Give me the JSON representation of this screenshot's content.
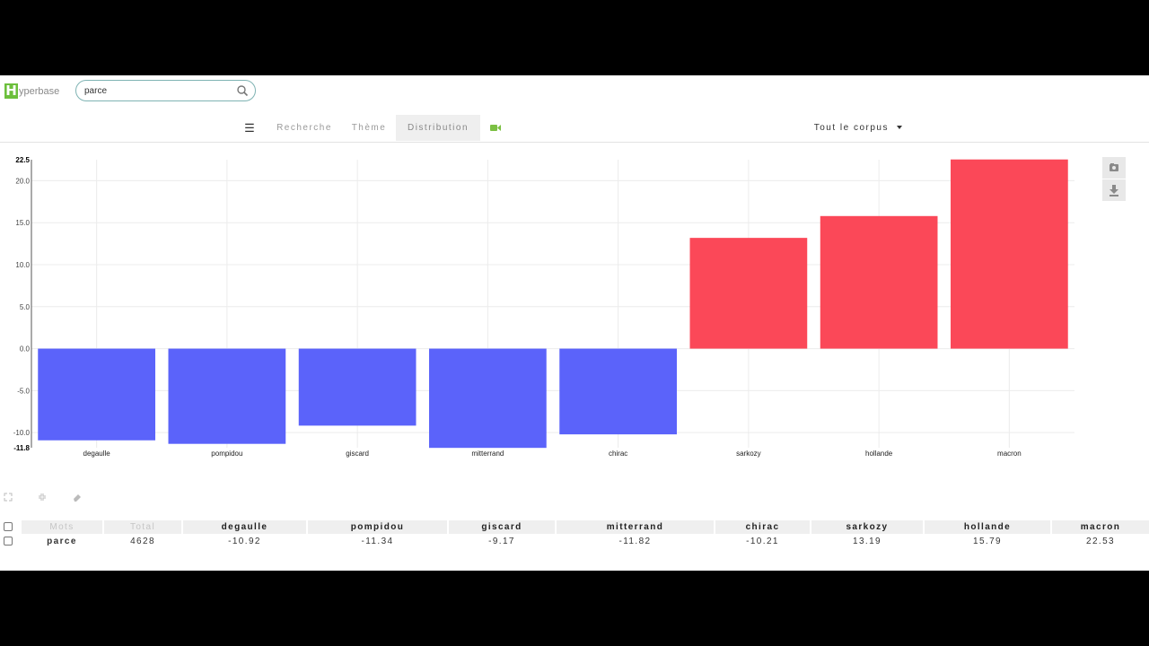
{
  "app": {
    "logo_letter": "H",
    "logo_rest": "yperbase"
  },
  "search": {
    "value": "parce",
    "icon": "search-icon"
  },
  "nav": {
    "menu_icon": "☰",
    "tabs": [
      "Recherche",
      "Thème",
      "Distribution"
    ],
    "active_tab": "Distribution",
    "camera_icon": "video-camera-icon",
    "corpus_label": "Tout le corpus"
  },
  "colors": {
    "negative": "#5b63fa",
    "positive": "#fb4858",
    "accent": "#6cbf3c"
  },
  "chart_data": {
    "type": "bar",
    "categories": [
      "degaulle",
      "pompidou",
      "giscard",
      "mitterrand",
      "chirac",
      "sarkozy",
      "hollande",
      "macron"
    ],
    "values": [
      -10.92,
      -11.34,
      -9.17,
      -11.82,
      -10.21,
      13.19,
      15.79,
      22.53
    ],
    "ylim": [
      -11.8,
      22.5
    ],
    "yticks": [
      "22.5",
      "20.0",
      "15.0",
      "10.0",
      "5.0",
      "0.0",
      "-5.0",
      "-10.0",
      "-11.8"
    ],
    "grid": true
  },
  "table": {
    "headers": [
      "Mots",
      "Total",
      "degaulle",
      "pompidou",
      "giscard",
      "mitterrand",
      "chirac",
      "sarkozy",
      "hollande",
      "macron"
    ],
    "rows": [
      [
        "parce",
        "4628",
        "-10.92",
        "-11.34",
        "-9.17",
        "-11.82",
        "-10.21",
        "13.19",
        "15.79",
        "22.53"
      ]
    ]
  }
}
